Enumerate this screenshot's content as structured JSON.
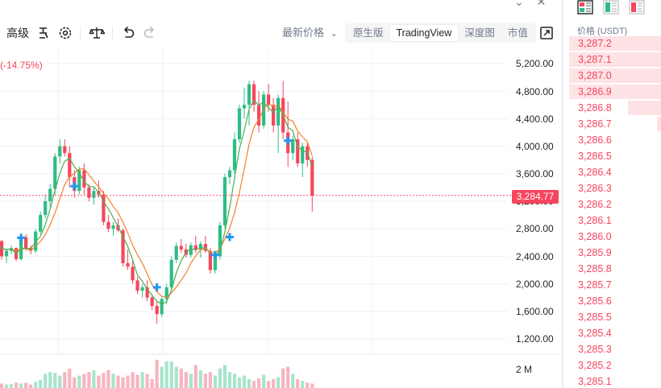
{
  "toolbar": {
    "advanced_label": "高级",
    "price_type_label": "最新价格",
    "views": [
      "原生版",
      "TradingView",
      "深度图",
      "市值"
    ],
    "active_view": 1
  },
  "chart": {
    "change_text": "(-14.75%)",
    "current_price_label": "3,284.77",
    "volume_axis_label": "2 M",
    "y_axis_labels": [
      "5,200.00",
      "4,800.00",
      "4,400.00",
      "4,000.00",
      "3,600.00",
      "3,200.00",
      "2,800.00",
      "2,400.00",
      "2,000.00",
      "1,600.00",
      "1,200.00"
    ]
  },
  "chart_data": {
    "type": "candlestick",
    "ylim": [
      1200,
      5200
    ],
    "current_price": 3284.77,
    "y_ticks": [
      5200,
      4800,
      4400,
      4000,
      3600,
      3200,
      2800,
      2400,
      2000,
      1600,
      1200
    ],
    "candles": [
      [
        2650,
        2700,
        2600,
        2620
      ],
      [
        2620,
        2640,
        2350,
        2400
      ],
      [
        2400,
        2500,
        2300,
        2480
      ],
      [
        2480,
        2560,
        2430,
        2520
      ],
      [
        2520,
        2530,
        2330,
        2360
      ],
      [
        2360,
        2700,
        2340,
        2680
      ],
      [
        2680,
        2720,
        2480,
        2520
      ],
      [
        2520,
        2560,
        2430,
        2480
      ],
      [
        2480,
        2800,
        2450,
        2760
      ],
      [
        2760,
        3050,
        2720,
        3000
      ],
      [
        3000,
        3300,
        2950,
        3200
      ],
      [
        3200,
        3450,
        3100,
        3380
      ],
      [
        3380,
        3900,
        3300,
        3850
      ],
      [
        3850,
        4100,
        3750,
        4000
      ],
      [
        4000,
        4100,
        3850,
        3900
      ],
      [
        3900,
        4000,
        3400,
        3550
      ],
      [
        3550,
        3650,
        3250,
        3350
      ],
      [
        3350,
        3700,
        3300,
        3650
      ],
      [
        3650,
        3750,
        3300,
        3400
      ],
      [
        3400,
        3450,
        3200,
        3250
      ],
      [
        3250,
        3400,
        3150,
        3350
      ],
      [
        3350,
        3500,
        3250,
        3300
      ],
      [
        3300,
        3350,
        2850,
        2900
      ],
      [
        2900,
        3000,
        2750,
        2800
      ],
      [
        2800,
        2900,
        2700,
        2850
      ],
      [
        2850,
        2950,
        2750,
        2780
      ],
      [
        2780,
        2800,
        2250,
        2300
      ],
      [
        2300,
        2500,
        2200,
        2250
      ],
      [
        2250,
        2350,
        2000,
        2050
      ],
      [
        2050,
        2100,
        1850,
        1900
      ],
      [
        1900,
        2000,
        1800,
        1950
      ],
      [
        1950,
        2050,
        1750,
        1800
      ],
      [
        1800,
        1850,
        1620,
        1680
      ],
      [
        1680,
        1750,
        1420,
        1560
      ],
      [
        1560,
        1800,
        1520,
        1780
      ],
      [
        1780,
        2000,
        1700,
        1950
      ],
      [
        1950,
        2400,
        1900,
        2350
      ],
      [
        2350,
        2600,
        2300,
        2550
      ],
      [
        2550,
        2650,
        2450,
        2500
      ],
      [
        2500,
        2580,
        2380,
        2420
      ],
      [
        2420,
        2600,
        2380,
        2560
      ],
      [
        2560,
        2700,
        2450,
        2500
      ],
      [
        2500,
        2620,
        2380,
        2580
      ],
      [
        2580,
        2700,
        2450,
        2480
      ],
      [
        2480,
        2520,
        2150,
        2200
      ],
      [
        2200,
        2450,
        2150,
        2400
      ],
      [
        2400,
        2900,
        2350,
        2850
      ],
      [
        2850,
        3600,
        2800,
        3550
      ],
      [
        3550,
        3700,
        3450,
        3650
      ],
      [
        3650,
        4200,
        3600,
        4100
      ],
      [
        4100,
        4600,
        4050,
        4550
      ],
      [
        4550,
        4850,
        4400,
        4600
      ],
      [
        4600,
        4950,
        4300,
        4900
      ],
      [
        4900,
        4950,
        4500,
        4600
      ],
      [
        4600,
        4800,
        4200,
        4300
      ],
      [
        4300,
        4800,
        4250,
        4750
      ],
      [
        4750,
        4900,
        4500,
        4600
      ],
      [
        4600,
        4700,
        4200,
        4300
      ],
      [
        4300,
        4750,
        3900,
        4700
      ],
      [
        4700,
        4950,
        4100,
        4200
      ],
      [
        4200,
        4650,
        3700,
        3900
      ],
      [
        3900,
        4150,
        3800,
        4100
      ],
      [
        4100,
        4200,
        3700,
        3750
      ],
      [
        3750,
        4050,
        3550,
        4000
      ],
      [
        4000,
        4050,
        3700,
        3800
      ],
      [
        3800,
        3850,
        3050,
        3280
      ]
    ],
    "volumes": [
      0.3,
      0.25,
      0.2,
      0.22,
      0.3,
      0.25,
      0.3,
      0.2,
      0.35,
      0.45,
      0.8,
      0.9,
      0.85,
      0.7,
      0.9,
      1.1,
      0.6,
      0.7,
      0.8,
      0.9,
      1.0,
      0.7,
      0.85,
      1.0,
      0.8,
      0.7,
      0.6,
      0.7,
      0.9,
      0.75,
      0.9,
      0.8,
      0.5,
      1.6,
      1.2,
      1.5,
      1.5,
      1.2,
      1.1,
      0.9,
      0.8,
      1.3,
      1.0,
      0.8,
      0.9,
      0.7,
      1.1,
      1.3,
      0.9,
      0.8,
      0.6,
      0.7,
      0.5,
      0.4,
      0.55,
      0.75,
      0.4,
      0.5,
      0.6,
      1.1,
      1.2,
      0.8,
      0.5,
      0.4,
      0.3,
      0.25
    ],
    "markers": [
      {
        "index": 5,
        "price": 2670
      },
      {
        "index": 16,
        "price": 3420
      },
      {
        "index": 33,
        "price": 1950
      },
      {
        "index": 45,
        "price": 2420
      },
      {
        "index": 48,
        "price": 2680
      },
      {
        "index": 60,
        "price": 4080
      }
    ]
  },
  "order_book": {
    "header": "价格 (USDT)",
    "asks": [
      {
        "price": "3,287.2",
        "depth": 1.0
      },
      {
        "price": "3,287.1",
        "depth": 1.0
      },
      {
        "price": "3,287.0",
        "depth": 1.0
      },
      {
        "price": "3,286.9",
        "depth": 1.0
      },
      {
        "price": "3,286.8",
        "depth": 0.36
      },
      {
        "price": "3,286.7",
        "depth": 0.04
      },
      {
        "price": "3,286.6",
        "depth": 0
      },
      {
        "price": "3,286.5",
        "depth": 0
      },
      {
        "price": "3,286.4",
        "depth": 0
      },
      {
        "price": "3,286.3",
        "depth": 0
      },
      {
        "price": "3,286.2",
        "depth": 0
      },
      {
        "price": "3,286.1",
        "depth": 0
      },
      {
        "price": "3,286.0",
        "depth": 0
      },
      {
        "price": "3,285.9",
        "depth": 0
      },
      {
        "price": "3,285.8",
        "depth": 0
      },
      {
        "price": "3,285.7",
        "depth": 0
      },
      {
        "price": "3,285.6",
        "depth": 0
      },
      {
        "price": "3,285.5",
        "depth": 0
      },
      {
        "price": "3,285.4",
        "depth": 0
      },
      {
        "price": "3,285.3",
        "depth": 0
      },
      {
        "price": "3,285.2",
        "depth": 0
      },
      {
        "price": "3,285.1",
        "depth": 0
      }
    ]
  },
  "colors": {
    "up": "#2ebd85",
    "down": "#f6465d",
    "ma_fast": "#4caf50",
    "ma_slow": "#f0822e",
    "marker": "#2196f3"
  },
  "icons": [
    "chevron-down-icon",
    "close-icon",
    "template-icon",
    "settings-icon",
    "balance-icon",
    "undo-icon",
    "redo-icon",
    "expand-icon",
    "orderbook-all-icon",
    "orderbook-buy-icon",
    "orderbook-sell-icon"
  ]
}
